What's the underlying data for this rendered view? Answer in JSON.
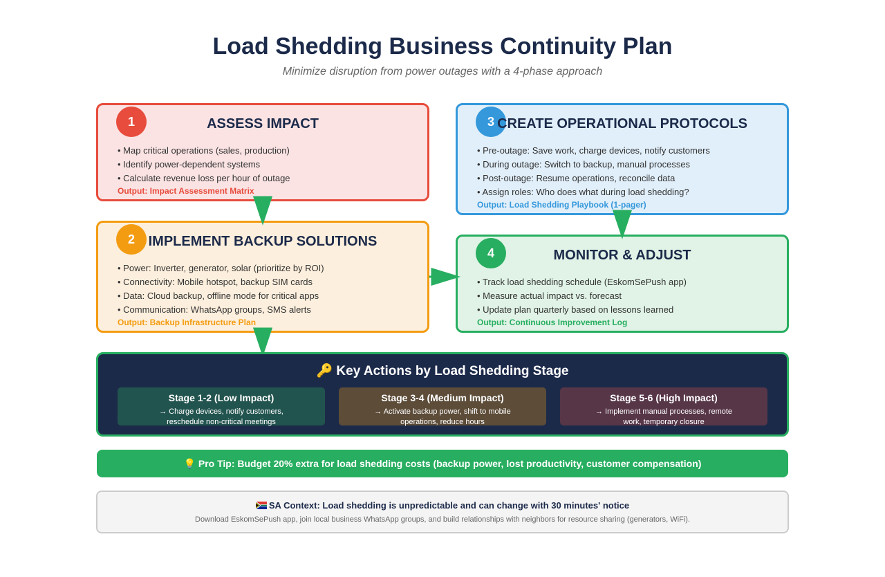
{
  "header": {
    "title": "Load Shedding Business Continuity Plan",
    "subtitle": "Minimize disruption from power outages with a 4-phase approach"
  },
  "phases": [
    {
      "number": "1",
      "title": "ASSESS IMPACT",
      "bullets": [
        "• Map critical operations (sales, production)",
        "• Identify power-dependent systems",
        "• Calculate revenue loss per hour of outage"
      ],
      "output": "Output: Impact Assessment Matrix",
      "color": "#e74c3c"
    },
    {
      "number": "2",
      "title": "IMPLEMENT BACKUP SOLUTIONS",
      "bullets": [
        "• Power: Inverter, generator, solar (prioritize by ROI)",
        "• Connectivity: Mobile hotspot, backup SIM cards",
        "• Data: Cloud backup, offline mode for critical apps",
        "• Communication: WhatsApp groups, SMS alerts"
      ],
      "output": "Output: Backup Infrastructure Plan",
      "color": "#f39c12"
    },
    {
      "number": "3",
      "title": "CREATE OPERATIONAL PROTOCOLS",
      "bullets": [
        "• Pre-outage: Save work, charge devices, notify customers",
        "• During outage: Switch to backup, manual processes",
        "• Post-outage: Resume operations, reconcile data",
        "• Assign roles: Who does what during load shedding?"
      ],
      "output": "Output: Load Shedding Playbook (1-pager)",
      "color": "#3498db"
    },
    {
      "number": "4",
      "title": "MONITOR & ADJUST",
      "bullets": [
        "• Track load shedding schedule (EskomSePush app)",
        "• Measure actual impact vs. forecast",
        "• Update plan quarterly based on lessons learned"
      ],
      "output": "Output: Continuous Improvement Log",
      "color": "#27ae60"
    }
  ],
  "stages": {
    "icon": "key-icon",
    "title": "🔑 Key Actions by Load Shedding Stage",
    "items": [
      {
        "name": "Stage 1-2 (Low Impact)",
        "action": "→ Charge devices, notify customers, reschedule non-critical meetings"
      },
      {
        "name": "Stage 3-4 (Medium Impact)",
        "action": "→ Activate backup power, shift to mobile operations, reduce hours"
      },
      {
        "name": "Stage 5-6 (High Impact)",
        "action": "→ Implement manual processes, remote work, temporary closure"
      }
    ]
  },
  "tip": {
    "icon": "lightbulb-icon",
    "text": "💡 Pro Tip: Budget 20% extra for load shedding costs (backup power, lost productivity, customer compensation)"
  },
  "context": {
    "icon": "south-africa-flag-icon",
    "title": "SA Context: Load shedding is unpredictable and can change with 30 minutes' notice",
    "body": "Download EskomSePush app, join local business WhatsApp groups, and build relationships with neighbors for resource sharing (generators, WiFi)."
  },
  "colors": {
    "navy": "#1c2a4a",
    "red": "#e74c3c",
    "orange": "#f39c12",
    "blue": "#3498db",
    "green": "#27ae60"
  }
}
